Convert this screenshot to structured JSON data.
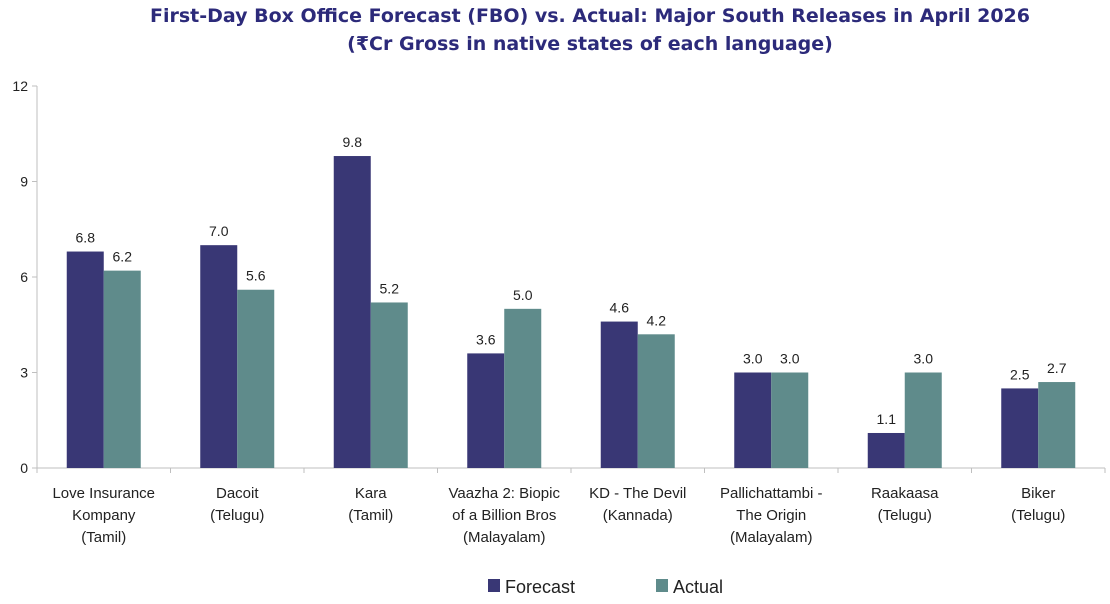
{
  "chart_data": {
    "type": "bar",
    "title": "First-Day Box Office Forecast (FBO) vs. Actual: Major South Releases in April 2026",
    "subtitle": "(₹Cr Gross in native states of each language)",
    "xlabel": "",
    "ylabel": "",
    "ylim": [
      0,
      12
    ],
    "yticks": [
      0,
      3,
      6,
      9,
      12
    ],
    "grid": false,
    "legend_position": "bottom",
    "categories": [
      [
        "Love Insurance",
        "Kompany",
        "(Tamil)"
      ],
      [
        "Dacoit",
        "(Telugu)"
      ],
      [
        "Kara",
        "(Tamil)"
      ],
      [
        "Vaazha 2: Biopic",
        "of a Billion Bros",
        "(Malayalam)"
      ],
      [
        "KD - The Devil",
        "(Kannada)"
      ],
      [
        "Pallichattambi -",
        "The Origin",
        "(Malayalam)"
      ],
      [
        "Raakaasa",
        "(Telugu)"
      ],
      [
        "Biker",
        "(Telugu)"
      ]
    ],
    "series": [
      {
        "name": "Forecast",
        "color": "#393775",
        "values": [
          6.8,
          7.0,
          9.8,
          3.6,
          4.6,
          3.0,
          1.1,
          2.5
        ]
      },
      {
        "name": "Actual",
        "color": "#5f8b8b",
        "values": [
          6.2,
          5.6,
          5.2,
          5.0,
          4.2,
          3.0,
          3.0,
          2.7
        ]
      }
    ]
  }
}
